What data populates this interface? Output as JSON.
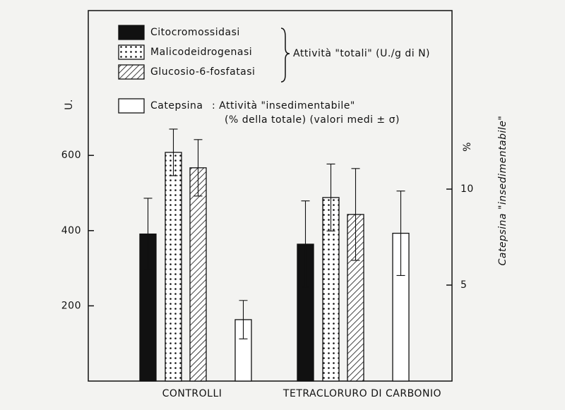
{
  "chart_data": {
    "type": "bar",
    "categories": [
      "CONTROLLI",
      "TETRACLORURO DI CARBONIO"
    ],
    "ylabel": "U.",
    "y2label": "%",
    "y2title": "Catepsina \"insedimentabile\"",
    "ylim": [
      0,
      985
    ],
    "yticks": [
      200,
      400,
      600
    ],
    "y2lim": [
      0,
      19.3
    ],
    "y2ticks": [
      5,
      10
    ],
    "legend_group_note": "Attività \"totali\" (U./g di N)",
    "legend_note_line1": ": Attività \"insedimentabile\"",
    "legend_note_line2": "(% della totale) (valori medi ± σ)",
    "series": [
      {
        "name": "Citocromossidasi",
        "color": "#111111",
        "pattern": "solid",
        "values": [
          391,
          364
        ],
        "errors": [
          95,
          115
        ]
      },
      {
        "name": "Malicodeidrogenasi",
        "color": "#111111",
        "pattern": "dots",
        "values": [
          608,
          488
        ],
        "errors": [
          62,
          89
        ]
      },
      {
        "name": "Glucosio-6-fosfatasi",
        "color": "#111111",
        "pattern": "hatch",
        "values": [
          567,
          443
        ],
        "errors": [
          75,
          122
        ]
      },
      {
        "name": "Catepsina",
        "color": "#111111",
        "pattern": "none",
        "axis": "y2",
        "values": [
          3.2,
          7.7
        ],
        "errors": [
          1.0,
          2.2
        ]
      }
    ]
  }
}
